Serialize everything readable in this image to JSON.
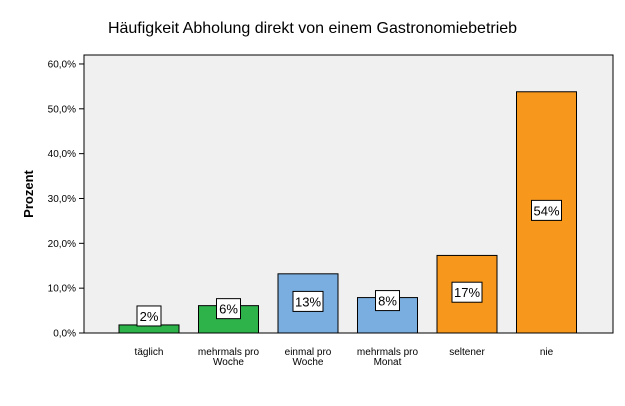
{
  "chart_data": {
    "type": "bar",
    "title": "Häufigkeit Abholung direkt von einem Gastronomiebetrieb",
    "xlabel": "",
    "ylabel": "Prozent",
    "ylim": [
      0,
      62
    ],
    "yticks": [
      0,
      10,
      20,
      30,
      40,
      50,
      60
    ],
    "ytick_labels": [
      "0,0%",
      "10,0%",
      "20,0%",
      "30,0%",
      "40,0%",
      "50,0%",
      "60,0%"
    ],
    "categories": [
      [
        "täglich"
      ],
      [
        "mehrmals pro",
        "Woche"
      ],
      [
        "einmal pro",
        "Woche"
      ],
      [
        "mehrmals pro",
        "Monat"
      ],
      [
        "seltener"
      ],
      [
        "nie"
      ]
    ],
    "values": [
      2,
      6,
      13,
      8,
      17,
      54
    ],
    "plotted_values": [
      1.8,
      6.1,
      13.2,
      7.9,
      17.3,
      53.8
    ],
    "data_labels": [
      "2%",
      "6%",
      "13%",
      "8%",
      "17%",
      "54%"
    ],
    "bar_colors": [
      "#2db34a",
      "#2db34a",
      "#7aaee0",
      "#7aaee0",
      "#f7981d",
      "#f7981d"
    ],
    "plot_background": "#f0f0f0",
    "grid": false,
    "legend": "none"
  }
}
